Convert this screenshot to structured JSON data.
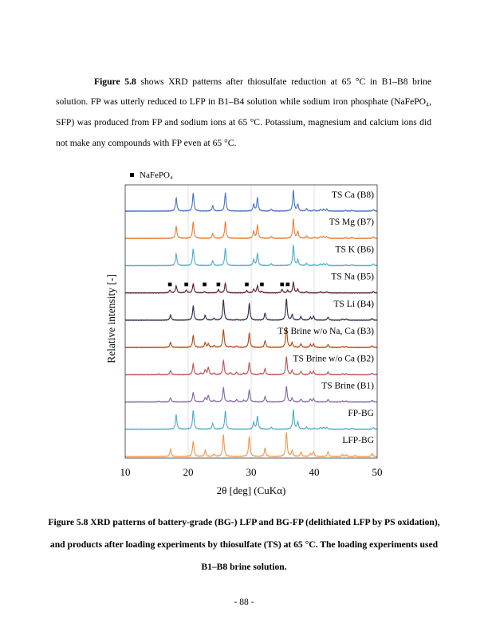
{
  "body_text": {
    "lead": "Figure 5.8",
    "text": " shows XRD patterns after thiosulfate reduction at 65 °C in B1–B8 brine solution. FP was utterly reduced to LFP in B1–B4 solution while sodium iron phosphate (NaFePO₄, SFP) was produced from FP and sodium ions at 65 °C. Potassium, magnesium and calcium ions did not make any compounds with FP even at 65 °C."
  },
  "caption": "Figure 5.8 XRD patterns of battery-grade (BG-) LFP and BG-FP (delithiated LFP by PS oxidation), and products after loading experiments by thiosulfate (TS) at 65 °C. The loading experiments used B1–B8 brine solution.",
  "page_number": "- 88 -",
  "chart_data": {
    "type": "line",
    "xlabel": "2θ [deg] (CuKα)",
    "ylabel": "Relative intensity [-]",
    "xlim": [
      10,
      50
    ],
    "xticks": [
      "10",
      "20",
      "30",
      "40",
      "50"
    ],
    "grid": "vertical at 20, 30, 40",
    "legend": {
      "marker": "square",
      "label": "NaFePO₄",
      "placement": "top-left"
    },
    "nafepo4_markers_on": "TS Na (B5)",
    "nafepo4_marker_positions": [
      17.1,
      19.7,
      22.6,
      24.8,
      29.3,
      31.7,
      34.9,
      35.8
    ],
    "stacking": "offset vertically, top to bottom",
    "series": [
      {
        "name": "TS Ca (B8)",
        "color": "#4472c4",
        "peaks": [
          [
            18.1,
            0.55
          ],
          [
            20.8,
            0.75
          ],
          [
            23.9,
            0.22
          ],
          [
            25.9,
            0.75
          ],
          [
            30.4,
            0.28
          ],
          [
            31.0,
            0.55
          ],
          [
            33.2,
            0.08
          ],
          [
            36.7,
            0.85
          ],
          [
            37.4,
            0.28
          ],
          [
            38.8,
            0.1
          ],
          [
            40.0,
            0.05
          ],
          [
            41.0,
            0.07
          ],
          [
            41.5,
            0.08
          ],
          [
            42.0,
            0.08
          ],
          [
            45.0,
            0.03
          ],
          [
            46.0,
            0.04
          ],
          [
            49.4,
            0.07
          ]
        ]
      },
      {
        "name": "TS Mg (B7)",
        "color": "#ed7d31",
        "peaks": [
          [
            18.1,
            0.5
          ],
          [
            20.8,
            0.7
          ],
          [
            23.9,
            0.2
          ],
          [
            25.9,
            0.7
          ],
          [
            30.4,
            0.28
          ],
          [
            31.0,
            0.55
          ],
          [
            33.2,
            0.08
          ],
          [
            36.7,
            0.8
          ],
          [
            37.4,
            0.28
          ],
          [
            38.8,
            0.1
          ],
          [
            40.0,
            0.05
          ],
          [
            41.0,
            0.07
          ],
          [
            41.5,
            0.08
          ],
          [
            42.0,
            0.08
          ],
          [
            45.0,
            0.03
          ],
          [
            46.0,
            0.04
          ],
          [
            49.4,
            0.07
          ]
        ]
      },
      {
        "name": "TS K (B6)",
        "color": "#4bacc6",
        "peaks": [
          [
            18.1,
            0.5
          ],
          [
            20.8,
            0.72
          ],
          [
            23.9,
            0.2
          ],
          [
            25.9,
            0.72
          ],
          [
            30.4,
            0.25
          ],
          [
            31.0,
            0.5
          ],
          [
            33.2,
            0.08
          ],
          [
            36.7,
            0.85
          ],
          [
            37.4,
            0.25
          ],
          [
            38.8,
            0.1
          ],
          [
            40.0,
            0.05
          ],
          [
            41.0,
            0.07
          ],
          [
            41.5,
            0.08
          ],
          [
            42.0,
            0.08
          ],
          [
            45.0,
            0.03
          ],
          [
            46.0,
            0.04
          ],
          [
            49.4,
            0.07
          ]
        ]
      },
      {
        "name": "TS Na (B5)",
        "color": "#5b1a2a",
        "peaks": [
          [
            17.1,
            0.12
          ],
          [
            18.1,
            0.3
          ],
          [
            19.7,
            0.12
          ],
          [
            20.8,
            0.38
          ],
          [
            22.6,
            0.05
          ],
          [
            24.8,
            0.14
          ],
          [
            25.9,
            0.4
          ],
          [
            29.3,
            0.1
          ],
          [
            30.4,
            0.15
          ],
          [
            31.0,
            0.3
          ],
          [
            31.7,
            0.06
          ],
          [
            34.9,
            0.15
          ],
          [
            35.8,
            0.1
          ],
          [
            36.7,
            0.45
          ],
          [
            37.4,
            0.15
          ],
          [
            38.8,
            0.05
          ],
          [
            41.0,
            0.05
          ],
          [
            42.0,
            0.05
          ],
          [
            49.4,
            0.06
          ]
        ]
      },
      {
        "name": "TS Li (B4)",
        "color": "#2e2a4a",
        "peaks": [
          [
            17.2,
            0.22
          ],
          [
            20.8,
            0.6
          ],
          [
            22.7,
            0.2
          ],
          [
            24.1,
            0.08
          ],
          [
            25.6,
            0.85
          ],
          [
            27.7,
            0.03
          ],
          [
            29.7,
            0.7
          ],
          [
            32.2,
            0.3
          ],
          [
            35.6,
            0.9
          ],
          [
            36.5,
            0.22
          ],
          [
            37.9,
            0.15
          ],
          [
            39.4,
            0.12
          ],
          [
            39.9,
            0.16
          ],
          [
            42.2,
            0.13
          ],
          [
            44.5,
            0.05
          ],
          [
            45.1,
            0.05
          ],
          [
            49.2,
            0.07
          ]
        ]
      },
      {
        "name": "TS Brine w/o Na, Ca (B3)",
        "color": "#b5460f",
        "peaks": [
          [
            17.2,
            0.22
          ],
          [
            20.8,
            0.5
          ],
          [
            22.7,
            0.2
          ],
          [
            23.2,
            0.15
          ],
          [
            24.1,
            0.08
          ],
          [
            25.6,
            0.75
          ],
          [
            26.7,
            0.04
          ],
          [
            27.7,
            0.06
          ],
          [
            29.7,
            0.6
          ],
          [
            32.2,
            0.28
          ],
          [
            35.6,
            0.85
          ],
          [
            36.5,
            0.2
          ],
          [
            37.9,
            0.15
          ],
          [
            39.4,
            0.12
          ],
          [
            39.9,
            0.14
          ],
          [
            42.2,
            0.12
          ],
          [
            44.5,
            0.04
          ],
          [
            45.1,
            0.04
          ],
          [
            49.2,
            0.07
          ]
        ]
      },
      {
        "name": "TS Brine w/o Ca (B2)",
        "color": "#c0504d",
        "peaks": [
          [
            15.3,
            0.03
          ],
          [
            17.2,
            0.18
          ],
          [
            20.8,
            0.45
          ],
          [
            22.0,
            0.06
          ],
          [
            22.7,
            0.2
          ],
          [
            23.2,
            0.3
          ],
          [
            24.1,
            0.06
          ],
          [
            25.6,
            0.6
          ],
          [
            26.7,
            0.08
          ],
          [
            27.7,
            0.1
          ],
          [
            28.8,
            0.06
          ],
          [
            29.7,
            0.5
          ],
          [
            31.5,
            0.05
          ],
          [
            32.2,
            0.25
          ],
          [
            35.6,
            0.75
          ],
          [
            36.5,
            0.18
          ],
          [
            37.9,
            0.14
          ],
          [
            39.4,
            0.12
          ],
          [
            39.9,
            0.14
          ],
          [
            42.2,
            0.12
          ],
          [
            44.5,
            0.04
          ],
          [
            45.1,
            0.04
          ],
          [
            49.2,
            0.07
          ]
        ]
      },
      {
        "name": "TS Brine (B1)",
        "color": "#8064a2",
        "peaks": [
          [
            15.3,
            0.03
          ],
          [
            17.2,
            0.18
          ],
          [
            20.8,
            0.4
          ],
          [
            22.7,
            0.18
          ],
          [
            23.2,
            0.28
          ],
          [
            24.1,
            0.06
          ],
          [
            25.6,
            0.6
          ],
          [
            26.7,
            0.06
          ],
          [
            27.7,
            0.1
          ],
          [
            28.8,
            0.06
          ],
          [
            29.7,
            0.5
          ],
          [
            32.2,
            0.22
          ],
          [
            35.6,
            0.65
          ],
          [
            36.5,
            0.16
          ],
          [
            37.9,
            0.12
          ],
          [
            39.4,
            0.12
          ],
          [
            39.9,
            0.14
          ],
          [
            42.2,
            0.1
          ],
          [
            44.5,
            0.04
          ],
          [
            45.1,
            0.04
          ],
          [
            49.2,
            0.07
          ]
        ]
      },
      {
        "name": "FP-BG",
        "color": "#4bacc6",
        "peaks": [
          [
            18.1,
            0.6
          ],
          [
            20.8,
            0.8
          ],
          [
            23.9,
            0.25
          ],
          [
            25.9,
            0.75
          ],
          [
            30.4,
            0.28
          ],
          [
            31.0,
            0.55
          ],
          [
            33.2,
            0.08
          ],
          [
            36.7,
            0.8
          ],
          [
            37.4,
            0.3
          ],
          [
            38.8,
            0.1
          ],
          [
            40.0,
            0.05
          ],
          [
            41.0,
            0.07
          ],
          [
            41.5,
            0.08
          ],
          [
            42.0,
            0.08
          ],
          [
            45.0,
            0.03
          ],
          [
            46.0,
            0.04
          ],
          [
            49.4,
            0.07
          ]
        ]
      },
      {
        "name": "LFP-BG",
        "color": "#f79646",
        "peaks": [
          [
            17.2,
            0.3
          ],
          [
            20.8,
            0.65
          ],
          [
            22.7,
            0.25
          ],
          [
            24.1,
            0.1
          ],
          [
            25.6,
            0.9
          ],
          [
            29.7,
            0.85
          ],
          [
            32.2,
            0.35
          ],
          [
            35.6,
            1.0
          ],
          [
            36.5,
            0.25
          ],
          [
            37.9,
            0.18
          ],
          [
            39.4,
            0.12
          ],
          [
            39.9,
            0.2
          ],
          [
            42.2,
            0.2
          ],
          [
            44.5,
            0.08
          ],
          [
            45.1,
            0.08
          ],
          [
            46.5,
            0.04
          ],
          [
            49.2,
            0.12
          ]
        ]
      }
    ]
  }
}
